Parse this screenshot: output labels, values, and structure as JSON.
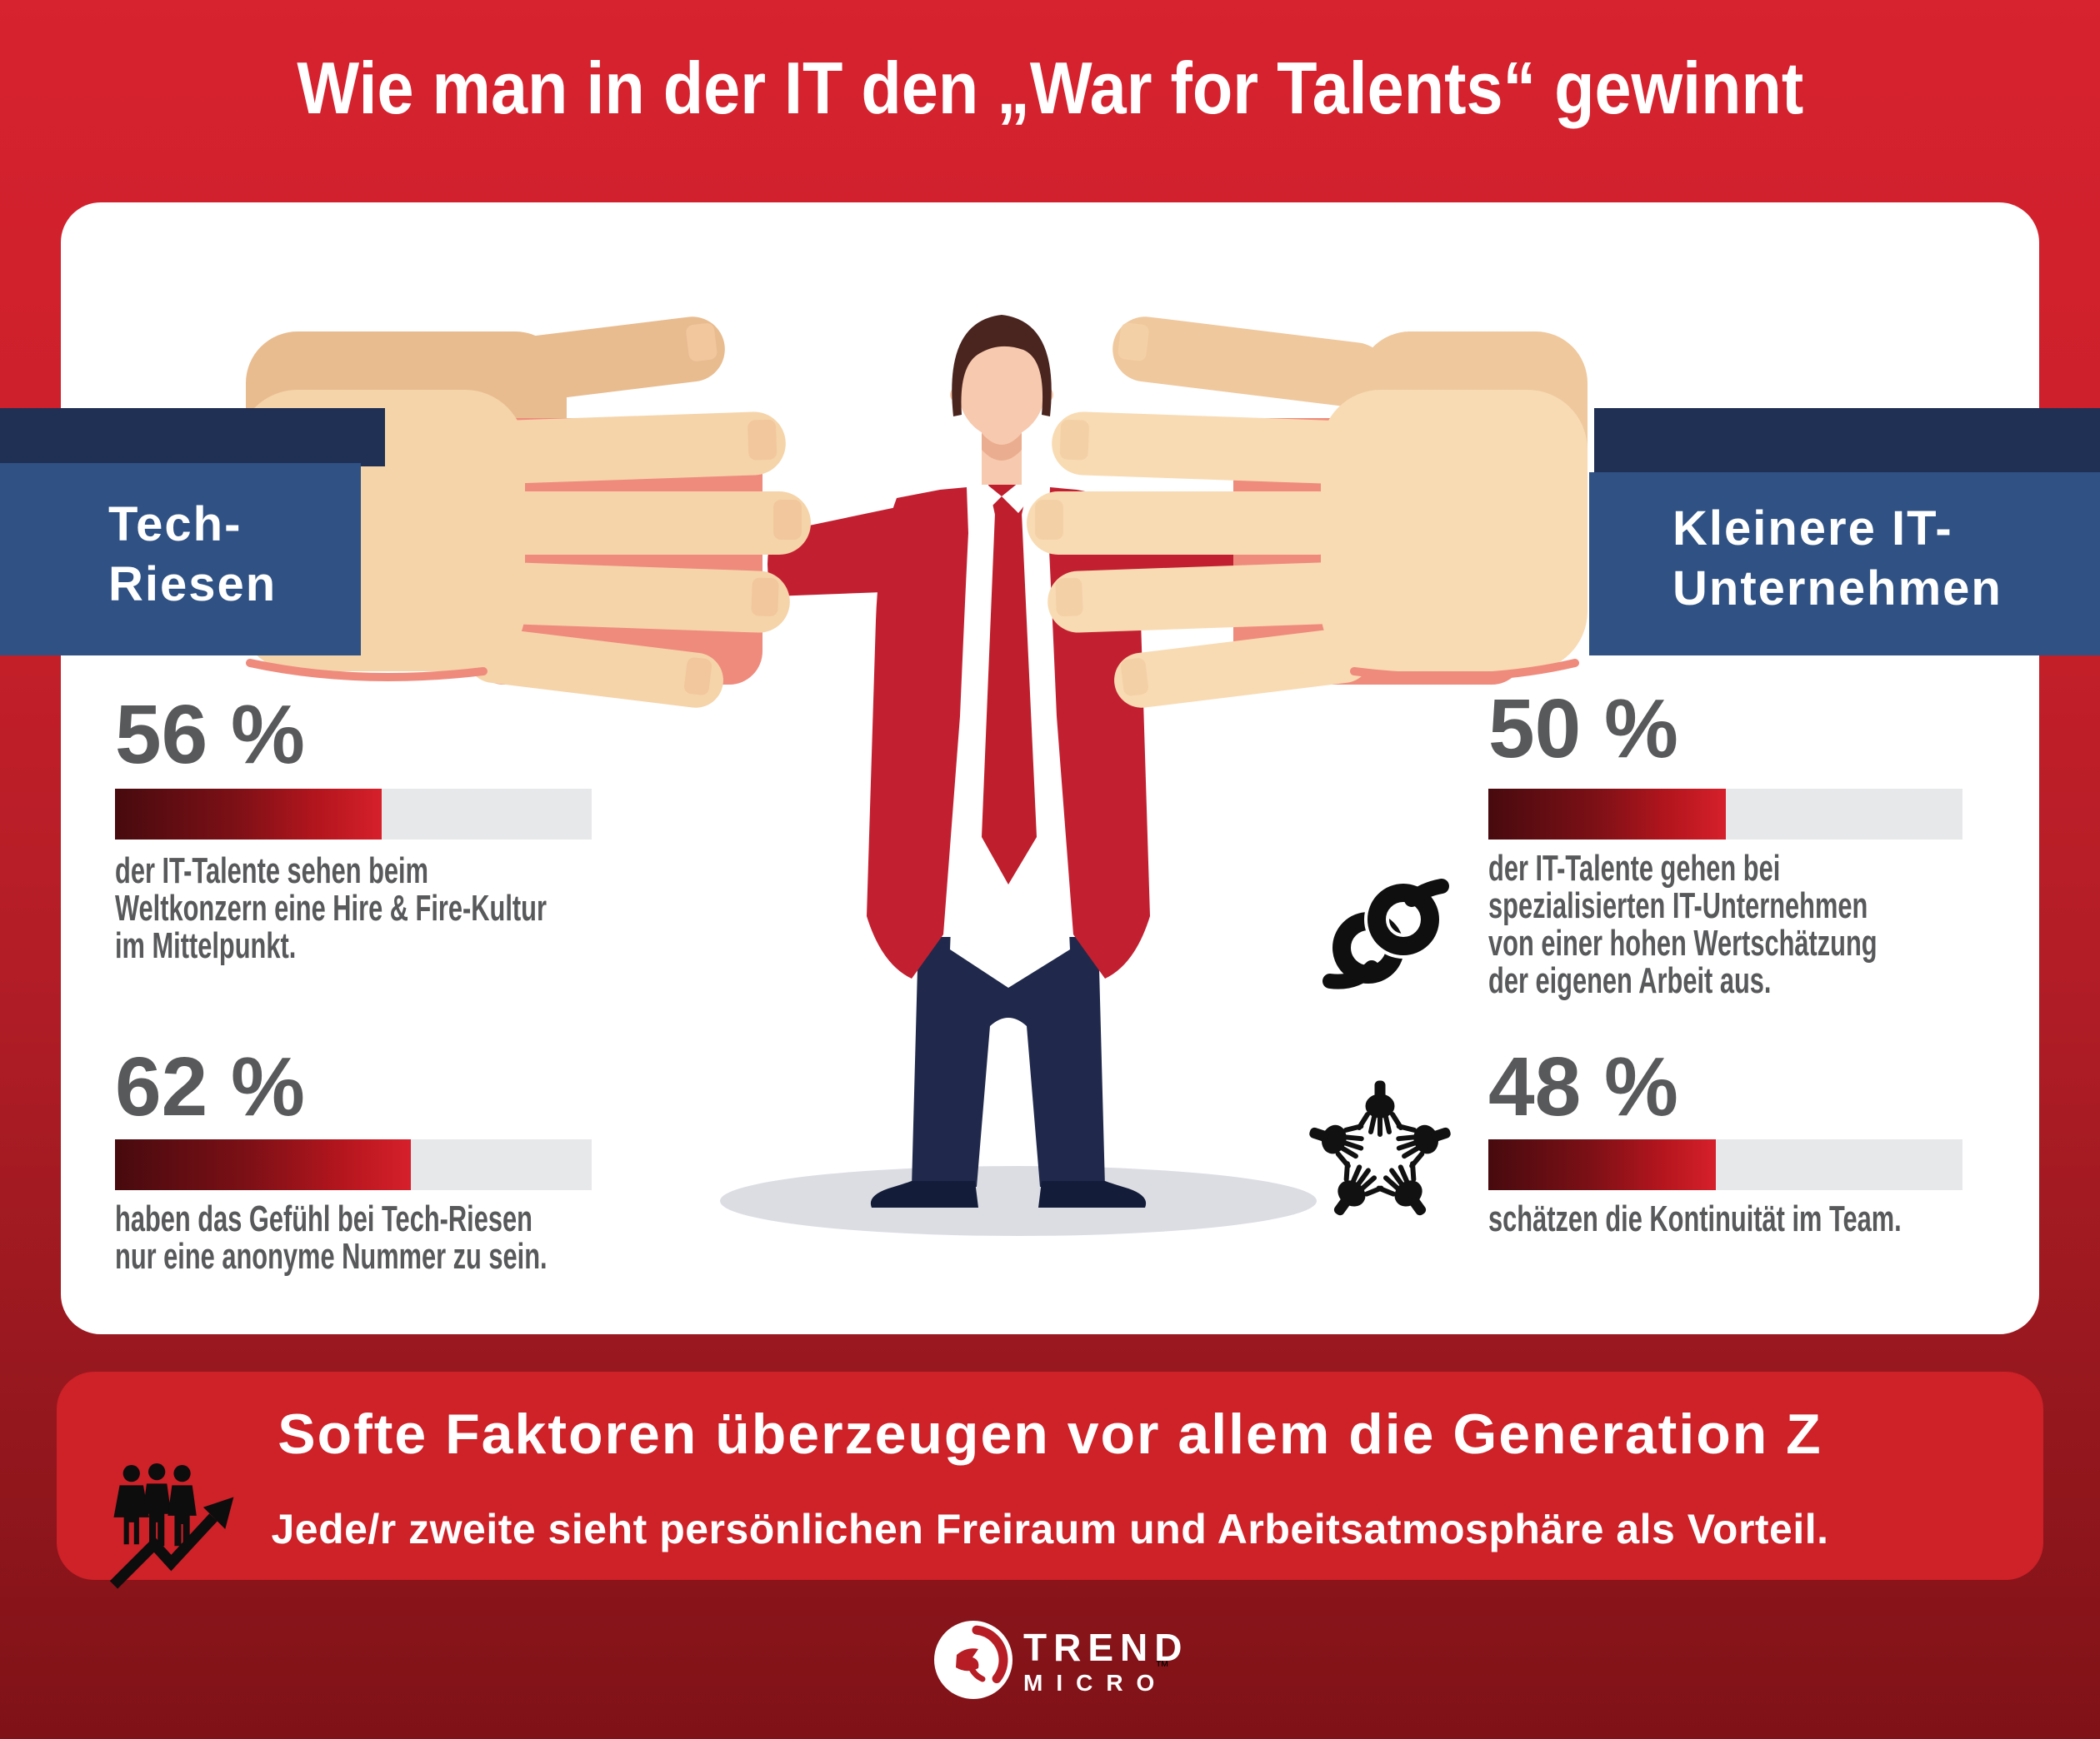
{
  "title": "Wie man in der IT den „War for Talents“ gewinnt",
  "sides": {
    "left": {
      "label_lines": [
        "Tech-",
        "Riesen"
      ]
    },
    "right": {
      "label_lines": [
        "Kleinere IT-",
        "Unternehmen"
      ]
    }
  },
  "stats": {
    "left": [
      {
        "value": "56 %",
        "percent": 56,
        "lines": [
          "der IT-Talente sehen beim",
          "Weltkonzern eine Hire & Fire-Kultur",
          "im Mittelpunkt."
        ]
      },
      {
        "value": "62 %",
        "percent": 62,
        "lines": [
          "haben das Gefühl bei Tech-Riesen",
          "nur eine anonyme Nummer zu sein."
        ]
      }
    ],
    "right": [
      {
        "value": "50 %",
        "percent": 50,
        "icon": "knot-icon",
        "lines": [
          "der IT-Talente gehen bei",
          "spezialisierten IT-Unternehmen",
          "von einer hohen Wertschätzung",
          "der eigenen Arbeit aus."
        ]
      },
      {
        "value": "48 %",
        "percent": 48,
        "icon": "team-hands-icon",
        "lines": [
          "schätzen die Kontinuität im Team."
        ]
      }
    ]
  },
  "banner": {
    "title": "Softe Faktoren überzeugen vor allem die Generation Z",
    "subtitle": "Jede/r zweite sieht persönlichen Freiraum und Arbeitsatmosphäre als Vorteil.",
    "icon": "people-growth-arrow-icon"
  },
  "logo": {
    "brand_line1": "TREND",
    "brand_line2": "MICRO",
    "trademark": "™",
    "icon": "trend-micro-ball-logo"
  },
  "icons": [
    "knot-icon",
    "team-hands-icon",
    "people-growth-arrow-icon",
    "trend-micro-ball-logo",
    "giant-hand-left",
    "giant-hand-right",
    "businessman-illustration"
  ],
  "colors": {
    "background_top": "#d7222f",
    "background_bottom": "#7f1217",
    "card": "#ffffff",
    "banner_red": "#ce2128",
    "navy_dark": "#203055",
    "navy_light": "#2f5184",
    "bar_track": "#e7e8ea",
    "bar_fill_dark": "#470a0e",
    "bar_fill_bright": "#d6202b",
    "text_gray": "#58595b",
    "white": "#ffffff",
    "skin_hand_back": "#e8bc8f",
    "skin_hand_front": "#f5d4a9",
    "jacket_red": "#c22031",
    "pants_navy": "#20294b"
  },
  "chart_data": {
    "type": "bar",
    "unit": "%",
    "xlim": [
      0,
      100
    ],
    "orientation": "horizontal",
    "groups": [
      {
        "group": "Tech-Riesen",
        "bars": [
          {
            "value": 56,
            "label": "der IT-Talente sehen beim Weltkonzern eine Hire & Fire-Kultur im Mittelpunkt."
          },
          {
            "value": 62,
            "label": "haben das Gefühl bei Tech-Riesen nur eine anonyme Nummer zu sein."
          }
        ]
      },
      {
        "group": "Kleinere IT-Unternehmen",
        "bars": [
          {
            "value": 50,
            "label": "der IT-Talente gehen bei spezialisierten IT-Unternehmen von einer hohen Wertschätzung der eigenen Arbeit aus."
          },
          {
            "value": 48,
            "label": "schätzen die Kontinuität im Team."
          }
        ]
      }
    ],
    "title": "Wie man in der IT den „War for Talents“ gewinnt",
    "legend_position": "none",
    "grid": false
  }
}
